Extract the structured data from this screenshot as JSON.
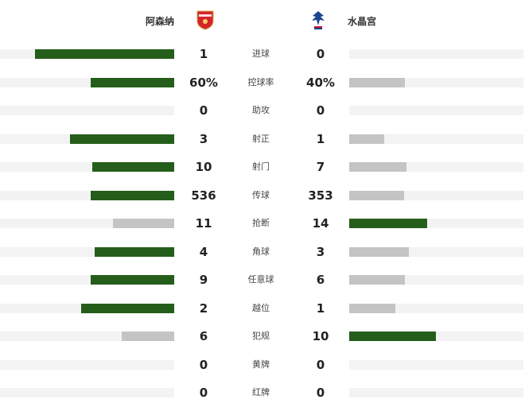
{
  "home": {
    "name": "阿森纳",
    "crest": "arsenal-crest"
  },
  "away": {
    "name": "水晶宫",
    "crest": "crystal-palace-crest"
  },
  "colors": {
    "winner": "#255e1a",
    "loser": "#c4c4c4",
    "track": "#f3f3f3"
  },
  "stats": [
    {
      "label": "进球",
      "home": "1",
      "away": "0",
      "hv": 1,
      "av": 0
    },
    {
      "label": "控球率",
      "home": "60%",
      "away": "40%",
      "hv": 60,
      "av": 40
    },
    {
      "label": "助攻",
      "home": "0",
      "away": "0",
      "hv": 0,
      "av": 0
    },
    {
      "label": "射正",
      "home": "3",
      "away": "1",
      "hv": 3,
      "av": 1
    },
    {
      "label": "射门",
      "home": "10",
      "away": "7",
      "hv": 10,
      "av": 7
    },
    {
      "label": "传球",
      "home": "536",
      "away": "353",
      "hv": 536,
      "av": 353
    },
    {
      "label": "抢断",
      "home": "11",
      "away": "14",
      "hv": 11,
      "av": 14
    },
    {
      "label": "角球",
      "home": "4",
      "away": "3",
      "hv": 4,
      "av": 3
    },
    {
      "label": "任意球",
      "home": "9",
      "away": "6",
      "hv": 9,
      "av": 6
    },
    {
      "label": "越位",
      "home": "2",
      "away": "1",
      "hv": 2,
      "av": 1
    },
    {
      "label": "犯规",
      "home": "6",
      "away": "10",
      "hv": 6,
      "av": 10
    },
    {
      "label": "黄牌",
      "home": "0",
      "away": "0",
      "hv": 0,
      "av": 0
    },
    {
      "label": "红牌",
      "home": "0",
      "away": "0",
      "hv": 0,
      "av": 0
    }
  ]
}
